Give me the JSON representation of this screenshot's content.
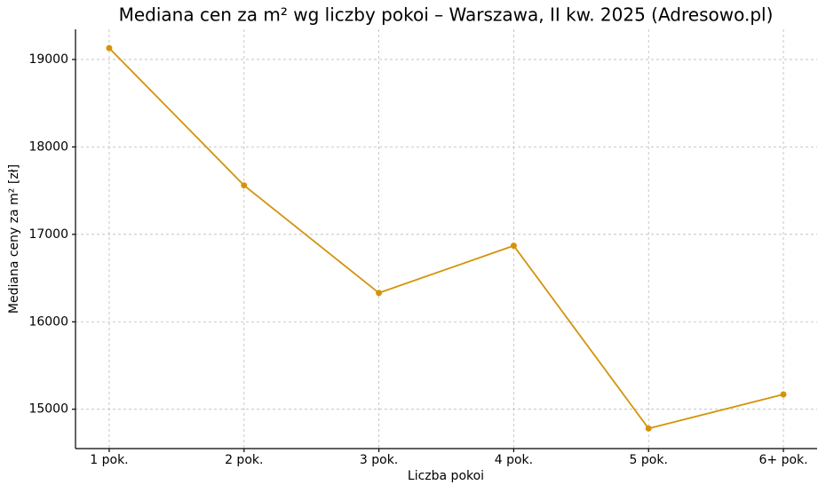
{
  "chart_data": {
    "type": "line",
    "title": "Mediana cen za m² wg liczby pokoi – Warszawa, II kw. 2025 (Adresowo.pl)",
    "x_label": "Liczba pokoi",
    "y_label": "Mediana ceny za m² [zł]",
    "categories": [
      "1 pok.",
      "2 pok.",
      "3 pok.",
      "4 pok.",
      "5 pok.",
      "6+ pok."
    ],
    "series": [
      {
        "name": "Mediana ceny za m²",
        "color": "#d4930a",
        "values": [
          19130,
          17560,
          16330,
          16870,
          14780,
          15170
        ]
      }
    ],
    "ylim": [
      14550,
      19345
    ],
    "yticks": [
      15000,
      16000,
      17000,
      18000,
      19000
    ],
    "grid": true
  }
}
